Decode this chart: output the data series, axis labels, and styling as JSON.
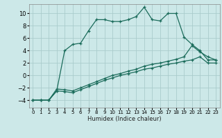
{
  "xlabel": "Humidex (Indice chaleur)",
  "bg_color": "#cce8e8",
  "grid_color": "#aacccc",
  "line_color": "#1a6b5a",
  "xlim": [
    -0.5,
    23.5
  ],
  "ylim": [
    -5.2,
    11.5
  ],
  "yticks": [
    -4,
    -2,
    0,
    2,
    4,
    6,
    8,
    10
  ],
  "xticks": [
    0,
    1,
    2,
    3,
    4,
    5,
    6,
    7,
    8,
    9,
    10,
    11,
    12,
    13,
    14,
    15,
    16,
    17,
    18,
    19,
    20,
    21,
    22,
    23
  ],
  "series1_x": [
    0,
    1,
    2,
    3,
    4,
    5,
    6,
    7,
    8,
    9,
    10,
    11,
    12,
    13,
    14,
    15,
    16,
    17,
    18,
    19,
    20,
    21,
    22,
    23
  ],
  "series1_y": [
    -4.0,
    -4.0,
    -4.0,
    -2.5,
    4.0,
    5.0,
    5.2,
    7.2,
    9.0,
    9.0,
    8.7,
    8.7,
    9.0,
    9.5,
    11.0,
    9.0,
    8.8,
    10.0,
    10.0,
    6.2,
    5.0,
    4.0,
    2.5,
    2.5
  ],
  "series2_x": [
    0,
    1,
    2,
    3,
    4,
    5,
    6,
    7,
    8,
    9,
    10,
    11,
    12,
    13,
    14,
    15,
    16,
    17,
    18,
    19,
    20,
    21,
    22,
    23
  ],
  "series2_y": [
    -4.0,
    -4.0,
    -4.0,
    -2.2,
    -2.3,
    -2.5,
    -2.0,
    -1.5,
    -1.0,
    -0.5,
    0.0,
    0.3,
    0.7,
    1.0,
    1.5,
    1.8,
    2.0,
    2.3,
    2.6,
    3.0,
    4.8,
    3.8,
    3.0,
    2.5
  ],
  "series3_x": [
    0,
    1,
    2,
    3,
    4,
    5,
    6,
    7,
    8,
    9,
    10,
    11,
    12,
    13,
    14,
    15,
    16,
    17,
    18,
    19,
    20,
    21,
    22,
    23
  ],
  "series3_y": [
    -4.0,
    -4.0,
    -4.0,
    -2.5,
    -2.6,
    -2.8,
    -2.3,
    -1.8,
    -1.3,
    -0.8,
    -0.4,
    0.0,
    0.3,
    0.6,
    1.0,
    1.2,
    1.5,
    1.8,
    2.0,
    2.3,
    2.5,
    3.0,
    2.0,
    2.0
  ]
}
